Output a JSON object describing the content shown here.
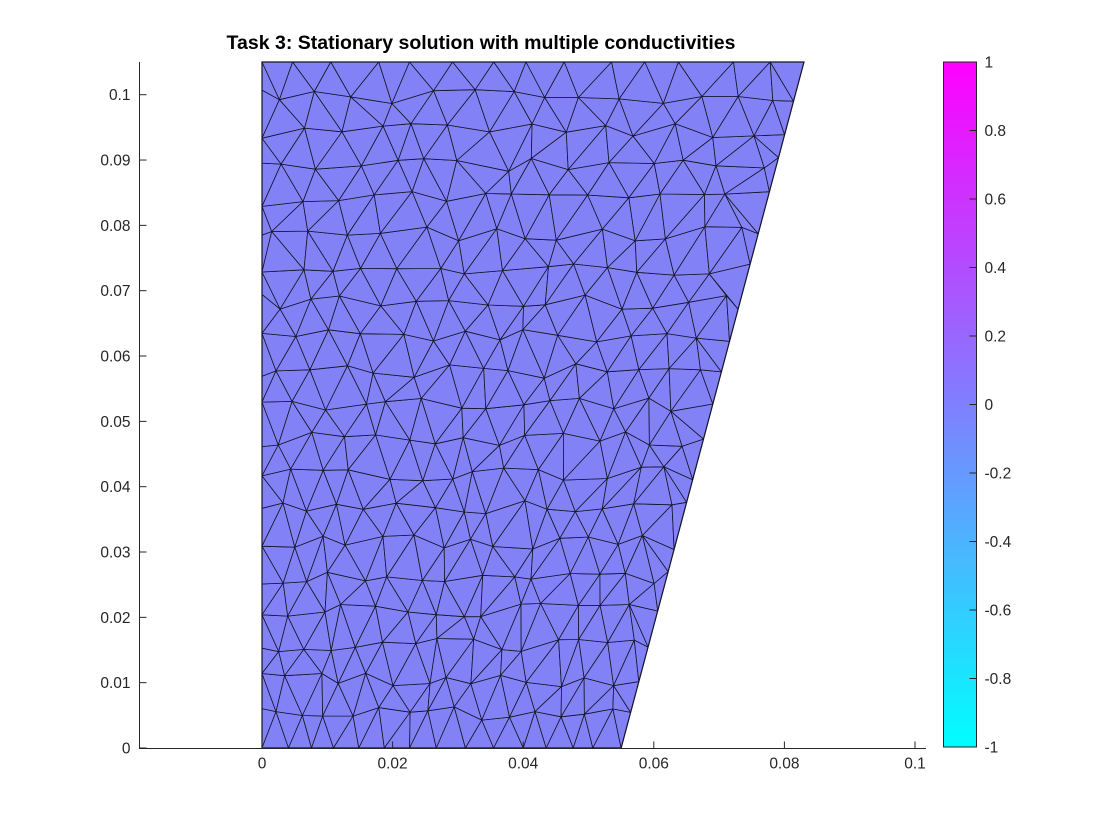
{
  "figure": {
    "title": "Task 3: Stationary solution with multiple conductivities",
    "background_color": "#ffffff",
    "axis_color": "#262626",
    "tick_label_color": "#262626",
    "title_color": "#000000"
  },
  "chart_data": {
    "type": "mesh",
    "title": "Task 3: Stationary solution with multiple conductivities",
    "xlabel": "",
    "ylabel": "",
    "grid": false,
    "legend": null,
    "xlim": [
      -0.019,
      0.1085
    ],
    "ylim": [
      0,
      0.105
    ],
    "x_ticks": [
      0,
      0.02,
      0.04,
      0.06,
      0.08,
      0.1
    ],
    "x_tick_labels": [
      "0",
      "0.02",
      "0.04",
      "0.06",
      "0.08",
      "0.1"
    ],
    "y_ticks": [
      0,
      0.01,
      0.02,
      0.03,
      0.04,
      0.05,
      0.06,
      0.07,
      0.08,
      0.09,
      0.1
    ],
    "y_tick_labels": [
      "0",
      "0.01",
      "0.02",
      "0.03",
      "0.04",
      "0.05",
      "0.06",
      "0.07",
      "0.08",
      "0.09",
      "0.1"
    ],
    "domain_vertices_xy": [
      [
        0,
        0
      ],
      [
        0.055,
        0
      ],
      [
        0.083,
        0.105
      ],
      [
        0,
        0.105
      ]
    ],
    "solution": {
      "uniform_value": 0,
      "fill_color": "#8282f6"
    },
    "mesh_style": {
      "fill": "#8282f6",
      "edge_color": "#15152b",
      "boundary_color": "#15152b",
      "rows": 20,
      "cols": 14,
      "seed": 13,
      "approx_triangle_count": 580
    },
    "colorbar": {
      "position": "right",
      "range": [
        -1,
        1
      ],
      "colormap": "cool",
      "top_color": "#ff00ff",
      "bottom_color": "#00ffff",
      "ticks": [
        1,
        0.8,
        0.6,
        0.4,
        0.2,
        0,
        -0.2,
        -0.4,
        -0.6,
        -0.8,
        -1
      ],
      "tick_labels": [
        "1",
        "0.8",
        "0.6",
        "0.4",
        "0.2",
        "0",
        "-0.2",
        "-0.4",
        "-0.6",
        "-0.8",
        "-1"
      ]
    }
  }
}
